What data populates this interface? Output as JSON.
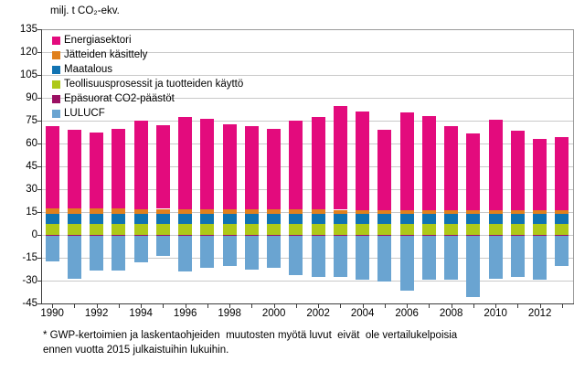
{
  "chart_title": "milj. t CO₂-ekv.",
  "footnote": {
    "line1": "* GWP-kertoimien ja laskentaohjeiden  muutosten myötä luvut  eivät  ole vertailukelpoisia",
    "line2": "ennen vuotta 2015 julkaistuihin lukuihin."
  },
  "chart_data": {
    "type": "bar",
    "stacked": true,
    "grid": true,
    "legend_position": "top-left-inside",
    "title": "milj. t CO₂-ekv.",
    "ylim": [
      -45,
      135
    ],
    "ytick_step": 15,
    "x": [
      1990,
      1991,
      1992,
      1993,
      1994,
      1995,
      1996,
      1997,
      1998,
      1999,
      2000,
      2001,
      2002,
      2003,
      2004,
      2005,
      2006,
      2007,
      2008,
      2009,
      2010,
      2011,
      2012,
      2013
    ],
    "x_tick_labels": [
      "1990",
      "1992",
      "1994",
      "1996",
      "1998",
      "2000",
      "2002",
      "2004",
      "2006",
      "2008",
      "2010",
      "2012"
    ],
    "x_tick_label_indices": [
      0,
      2,
      4,
      6,
      8,
      10,
      12,
      14,
      16,
      18,
      20,
      22
    ],
    "totals_positive": [
      71.2,
      69.3,
      67.3,
      69.9,
      75.3,
      71.9,
      77.7,
      76.3,
      72.7,
      71.7,
      69.7,
      74.9,
      77.3,
      84.7,
      81.3,
      68.9,
      80.6,
      78.2,
      71.3,
      66.9,
      75.9,
      68.3,
      63.3,
      64.3
    ],
    "series": [
      {
        "name": "Energiasektori",
        "color": "#e30b7d",
        "values": [
          53.9,
          52.0,
          50.1,
          52.7,
          58.2,
          54.8,
          60.7,
          59.3,
          55.8,
          54.9,
          53.0,
          58.2,
          60.7,
          68.2,
          64.8,
          52.5,
          64.3,
          61.9,
          55.1,
          50.7,
          59.8,
          52.2,
          47.3,
          48.3
        ]
      },
      {
        "name": "Jätteiden käsittely",
        "color": "#e0801d",
        "values": [
          3.6,
          3.6,
          3.5,
          3.5,
          3.4,
          3.4,
          3.3,
          3.3,
          3.2,
          3.1,
          3.0,
          3.0,
          2.9,
          2.8,
          2.8,
          2.7,
          2.6,
          2.6,
          2.5,
          2.5,
          2.4,
          2.4,
          2.3,
          2.3
        ]
      },
      {
        "name": "Maatalous",
        "color": "#1173b2",
        "values": [
          6.5,
          6.5,
          6.5,
          6.5,
          6.5,
          6.5,
          6.5,
          6.5,
          6.5,
          6.5,
          6.5,
          6.5,
          6.5,
          6.5,
          6.5,
          6.5,
          6.5,
          6.5,
          6.5,
          6.5,
          6.5,
          6.5,
          6.5,
          6.5
        ]
      },
      {
        "name": "Teollisuusprosessit ja tuotteiden käyttö",
        "color": "#aec918",
        "values": [
          7.0,
          7.0,
          7.0,
          7.0,
          7.0,
          7.0,
          7.0,
          7.0,
          7.0,
          7.0,
          7.0,
          7.0,
          7.0,
          7.0,
          7.0,
          7.0,
          7.0,
          7.0,
          7.0,
          7.0,
          7.0,
          7.0,
          7.0,
          7.0
        ]
      },
      {
        "name": "Epäsuorat CO2-päästöt",
        "color": "#9b1063",
        "values": [
          0.2,
          0.2,
          0.2,
          0.2,
          0.2,
          0.2,
          0.2,
          0.2,
          0.2,
          0.2,
          0.2,
          0.2,
          0.2,
          0.2,
          0.2,
          0.2,
          0.2,
          0.2,
          0.2,
          0.2,
          0.2,
          0.2,
          0.2,
          0.2
        ]
      },
      {
        "name": "LULUCF",
        "color": "#6aa4d1",
        "values": [
          -17,
          -28,
          -22.5,
          -23,
          -17.5,
          -13,
          -23.5,
          -21,
          -19.5,
          -22,
          -21,
          -26,
          -27,
          -27,
          -29,
          -30,
          -36,
          -28.5,
          -28.5,
          -40,
          -28,
          -27,
          -29,
          -20
        ]
      }
    ]
  }
}
